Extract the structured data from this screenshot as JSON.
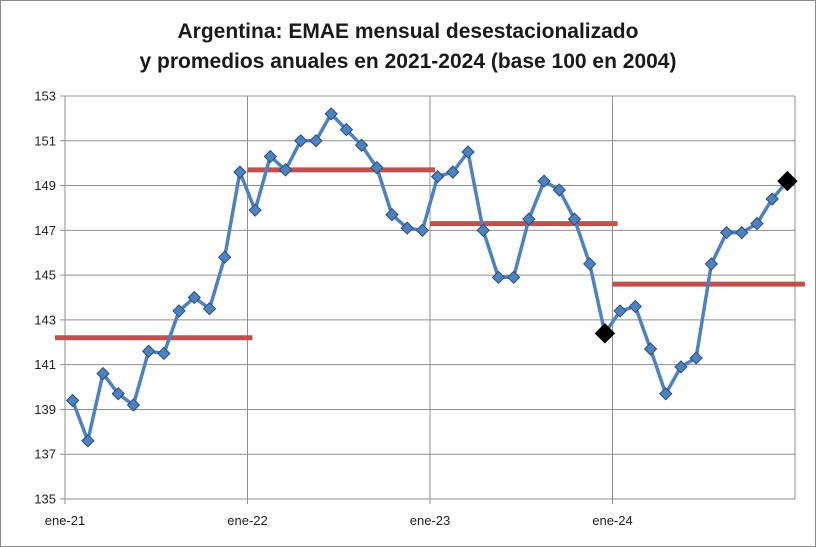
{
  "chart_data": {
    "type": "line",
    "title_line1": "Argentina: EMAE mensual desestacionalizado",
    "title_line2": "y promedios anuales en 2021-2024 (base 100 en 2004)",
    "xlabel": "",
    "ylabel": "",
    "ylim": [
      135,
      153
    ],
    "y_ticks": [
      135,
      137,
      139,
      141,
      143,
      145,
      147,
      149,
      151,
      153
    ],
    "x_tick_labels": [
      {
        "label": "ene-21",
        "index": 0
      },
      {
        "label": "ene-22",
        "index": 12
      },
      {
        "label": "ene-23",
        "index": 24
      },
      {
        "label": "ene-24",
        "index": 36
      }
    ],
    "grid": true,
    "series": [
      {
        "name": "EMAE mensual desestacionalizado",
        "color": "#4f81bd",
        "marker_color": "#4f81bd",
        "values": [
          139.4,
          137.6,
          140.6,
          139.7,
          139.2,
          141.6,
          141.5,
          143.4,
          144.0,
          143.5,
          145.8,
          149.6,
          147.9,
          150.3,
          149.7,
          151.0,
          151.0,
          152.2,
          151.5,
          150.8,
          149.8,
          147.7,
          147.1,
          147.0,
          149.4,
          149.6,
          150.5,
          147.0,
          144.9,
          144.9,
          147.5,
          149.2,
          148.8,
          147.5,
          145.5,
          142.4,
          143.4,
          143.6,
          141.7,
          139.7,
          140.9,
          141.3,
          145.5,
          146.9,
          146.9,
          147.3,
          148.4,
          149.2
        ]
      }
    ],
    "annual_averages": {
      "name": "Promedio anual",
      "color": "#c0504d",
      "values": [
        {
          "year": "2021",
          "value": 142.2
        },
        {
          "year": "2022",
          "value": 149.7
        },
        {
          "year": "2023",
          "value": 147.3
        },
        {
          "year": "2024",
          "value": 144.6
        }
      ]
    },
    "highlighted_points": [
      {
        "index": 35,
        "value": 142.4
      },
      {
        "index": 47,
        "value": 149.2
      }
    ]
  }
}
